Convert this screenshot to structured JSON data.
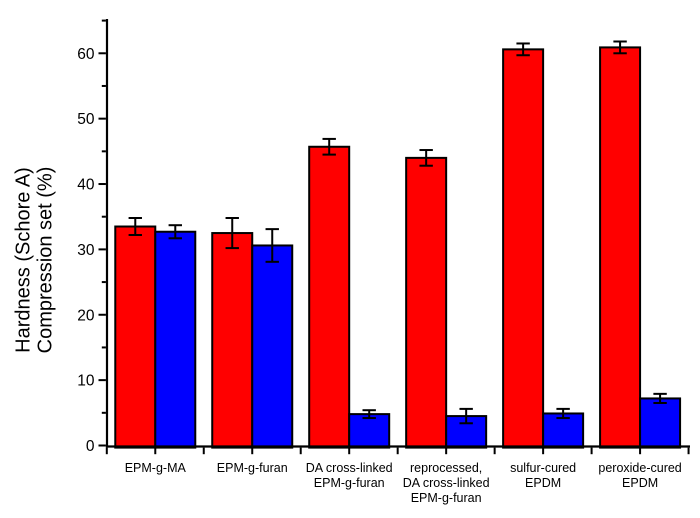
{
  "figure": {
    "background": "#ffffff"
  },
  "chart_data": {
    "type": "bar",
    "title": "",
    "xlabel": "",
    "ylabel_lines": [
      {
        "text": "Hardness (Schore A)",
        "color": "#ff0000"
      },
      {
        "text": "Compression set (%)",
        "color": "#0000ff"
      }
    ],
    "categories": [
      [
        "EPM-g-MA"
      ],
      [
        "EPM-g-furan"
      ],
      [
        "DA cross-linked",
        "EPM-g-furan"
      ],
      [
        "reprocessed,",
        "DA cross-linked",
        "EPM-g-furan"
      ],
      [
        "sulfur-cured",
        "EPDM"
      ],
      [
        "peroxide-cured",
        "EPDM"
      ]
    ],
    "series": [
      {
        "name": "Hardness (Schore A)",
        "color": "#ff0000",
        "values": [
          33.5,
          32.5,
          45.7,
          44.0,
          60.6,
          60.9
        ],
        "errors": [
          1.3,
          2.3,
          1.2,
          1.2,
          0.9,
          0.9
        ]
      },
      {
        "name": "Compression set (%)",
        "color": "#0000ff",
        "values": [
          32.7,
          30.6,
          4.8,
          4.5,
          4.9,
          7.2
        ],
        "errors": [
          1.0,
          2.5,
          0.6,
          1.1,
          0.7,
          0.7
        ]
      }
    ],
    "yticks": [
      0,
      10,
      20,
      30,
      40,
      50,
      60
    ],
    "minor_yticks": [
      5,
      15,
      25,
      35,
      45,
      55,
      65
    ],
    "ylim": [
      0,
      65.3
    ],
    "bar_edge_color": "#000000",
    "axis_color": "#000000",
    "grid": false,
    "legend": "none"
  }
}
